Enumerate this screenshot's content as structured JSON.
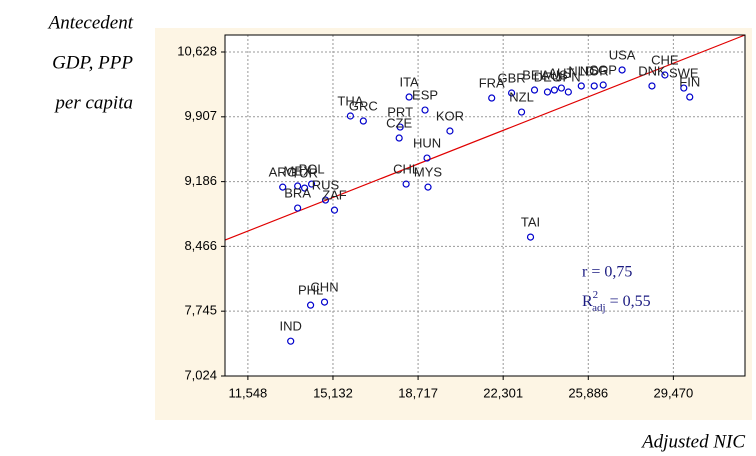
{
  "chart_data": {
    "type": "scatter",
    "xlabel": "Adjusted NIC",
    "ylabel": [
      "Antecedent",
      "GDP, PPP",
      "per capita"
    ],
    "xlim": [
      10584,
      32487
    ],
    "ylim": [
      7024,
      10817
    ],
    "xticks": [
      {
        "value": 11548,
        "label": "11,548"
      },
      {
        "value": 15132,
        "label": "15,132"
      },
      {
        "value": 18717,
        "label": "18,717"
      },
      {
        "value": 22301,
        "label": "22,301"
      },
      {
        "value": 25886,
        "label": "25,886"
      },
      {
        "value": 29470,
        "label": "29,470"
      }
    ],
    "yticks": [
      {
        "value": 7024,
        "label": "7,024"
      },
      {
        "value": 7745,
        "label": "7,745"
      },
      {
        "value": 8466,
        "label": "8,466"
      },
      {
        "value": 9186,
        "label": "9,186"
      },
      {
        "value": 9907,
        "label": "9,907"
      },
      {
        "value": 10628,
        "label": "10,628"
      }
    ],
    "grid": true,
    "color": "#0000cc",
    "labels": [
      "IND",
      "PHL",
      "CHN",
      "ARG",
      "MEX",
      "TUR",
      "BRA",
      "POL",
      "RUS",
      "ZAF",
      "THA",
      "GRC",
      "PRT",
      "CZE",
      "ITA",
      "ESP",
      "KOR",
      "HUN",
      "CHL",
      "MYS",
      "FRA",
      "GBR",
      "NZL",
      "TAI",
      "BEL",
      "DEU",
      "AUS",
      "AUT",
      "JPN",
      "NLD",
      "NOR",
      "SGP",
      "USA",
      "DNK",
      "CHE",
      "SWE",
      "FIN"
    ],
    "x": [
      13351,
      14189,
      14776,
      13015,
      13644,
      13937,
      13644,
      14231,
      14818,
      15195,
      15866,
      16411,
      17962,
      17920,
      18339,
      19010,
      20058,
      19094,
      18213,
      19135,
      21818,
      22656,
      23076,
      23453,
      23621,
      24166,
      24459,
      24753,
      25046,
      25591,
      26136,
      26514,
      27310,
      28568,
      29113,
      29909,
      30160
    ],
    "y": [
      7411,
      7812,
      7846,
      9125,
      9137,
      9114,
      8892,
      9159,
      8981,
      8869,
      9916,
      9860,
      9793,
      9671,
      10127,
      9982,
      9749,
      9448,
      9159,
      9125,
      10116,
      10172,
      9960,
      8569,
      10205,
      10183,
      10205,
      10227,
      10183,
      10250,
      10250,
      10261,
      10428,
      10250,
      10372,
      10227,
      10127
    ],
    "trendline": {
      "color": "#e00000",
      "x": [
        10584,
        32487
      ],
      "y": [
        8536,
        10817
      ]
    },
    "annotations": {
      "r": "r = 0,75",
      "R": "R",
      "sup": "2",
      "sub": "adj",
      "rest": " = 0,55"
    }
  }
}
